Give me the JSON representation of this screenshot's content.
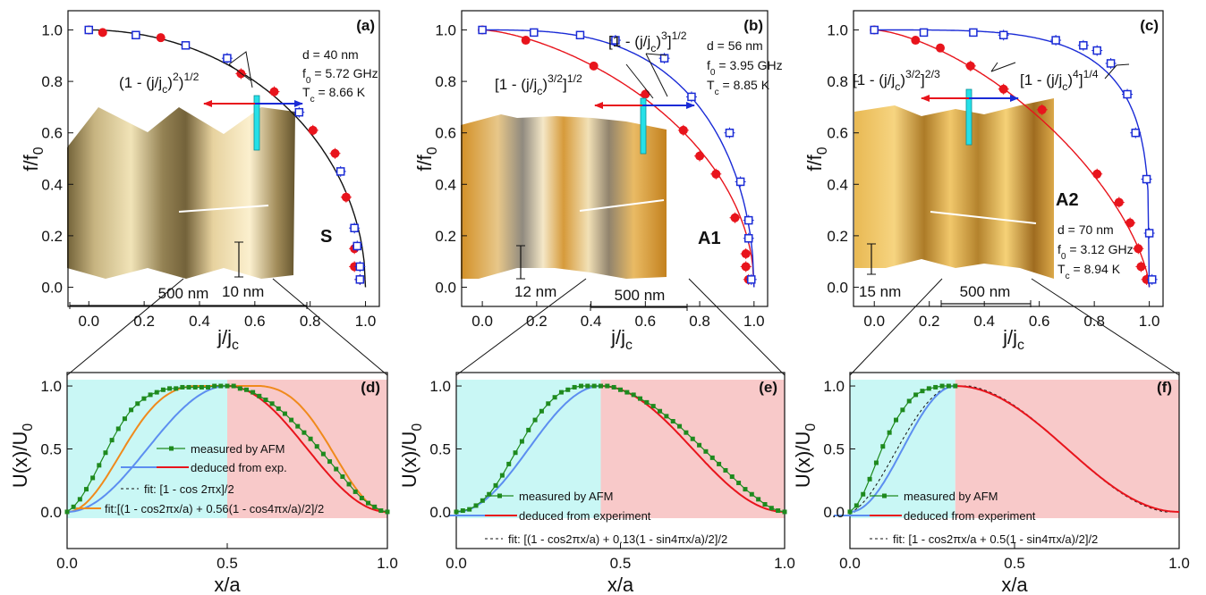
{
  "chart_data": [
    {
      "panel": "(a)",
      "type": "scatter",
      "xlabel": "j/j",
      "xlabel_sub": "c",
      "ylabel": "f/f",
      "ylabel_sub": "0",
      "xlim": [
        -0.03,
        1.05
      ],
      "ylim": [
        -0.04,
        1.04
      ],
      "xticks": [
        "0.0",
        "0.2",
        "0.4",
        "0.6",
        "0.8",
        "1.0"
      ],
      "yticks": [
        "0.0",
        "0.2",
        "0.4",
        "0.6",
        "0.8",
        "1.0"
      ],
      "series": [
        {
          "marker": "filled-circle",
          "color": "#e8141c",
          "x": [
            0.0,
            0.05,
            0.26,
            0.55,
            0.67,
            0.81,
            0.89,
            0.93,
            0.96,
            0.96,
            0.98
          ],
          "y": [
            1.0,
            0.99,
            0.97,
            0.83,
            0.76,
            0.61,
            0.52,
            0.35,
            0.15,
            0.08,
            0.03
          ]
        },
        {
          "marker": "open-square",
          "color": "#1a2bd6",
          "x": [
            0.0,
            0.17,
            0.35,
            0.5,
            0.76,
            0.91,
            0.96,
            0.97,
            0.98,
            0.98
          ],
          "y": [
            1.0,
            0.98,
            0.94,
            0.89,
            0.68,
            0.45,
            0.23,
            0.16,
            0.08,
            0.03
          ]
        }
      ],
      "fit_curves": [
        {
          "label": "(1 - (j/jc)^2)^1/2",
          "color": "#111111"
        }
      ],
      "annotations": [
        "(1 - (j/j",
        "c",
        ")",
        "2",
        ")",
        "1/2",
        "d = 40 nm",
        "f",
        "0",
        " = 5.72 GHz",
        "T",
        "c",
        " = 8.66 K"
      ],
      "inset": {
        "sample": "S",
        "scale_x": "500 nm",
        "scale_z": "10 nm"
      }
    },
    {
      "panel": "(b)",
      "type": "scatter",
      "xlabel": "j/j",
      "xlabel_sub": "c",
      "ylabel": "f/f",
      "ylabel_sub": "0",
      "xlim": [
        -0.03,
        1.05
      ],
      "ylim": [
        -0.04,
        1.04
      ],
      "xticks": [
        "0.0",
        "0.2",
        "0.4",
        "0.6",
        "0.8",
        "1.0"
      ],
      "yticks": [
        "0.0",
        "0.2",
        "0.4",
        "0.6",
        "0.8",
        "1.0"
      ],
      "series": [
        {
          "marker": "filled-circle",
          "color": "#e8141c",
          "x": [
            0.0,
            0.16,
            0.41,
            0.6,
            0.74,
            0.8,
            0.86,
            0.93,
            0.97,
            0.97,
            0.98
          ],
          "y": [
            1.0,
            0.96,
            0.86,
            0.75,
            0.61,
            0.51,
            0.44,
            0.27,
            0.13,
            0.08,
            0.03
          ]
        },
        {
          "marker": "open-square",
          "color": "#1a2bd6",
          "x": [
            0.0,
            0.19,
            0.36,
            0.49,
            0.67,
            0.77,
            0.91,
            0.95,
            0.98,
            0.98,
            0.99
          ],
          "y": [
            1.0,
            0.99,
            0.98,
            0.96,
            0.89,
            0.74,
            0.6,
            0.41,
            0.26,
            0.19,
            0.03
          ]
        }
      ],
      "fit_curves": [
        {
          "label": "[1 - (j/jc)^3/2]^1/2",
          "color": "#e8141c"
        },
        {
          "label": "[1 - (j/jc)^3]^1/2",
          "color": "#1a2bd6"
        }
      ],
      "annotations": [
        "[1 - (j/j",
        "c",
        ")",
        "3",
        "]",
        "1/2",
        "[1 - (j/j",
        "c",
        ")",
        "3/2",
        "]",
        "1/2",
        "d = 56 nm",
        "f",
        "0",
        " = 3.95 GHz",
        "T",
        "c",
        " = 8.85 K"
      ],
      "inset": {
        "sample": "A1",
        "scale_x": "500 nm",
        "scale_z": "12 nm"
      }
    },
    {
      "panel": "(c)",
      "type": "scatter",
      "xlabel": "j/j",
      "xlabel_sub": "c",
      "ylabel": "f/f",
      "ylabel_sub": "0",
      "xlim": [
        -0.03,
        1.05
      ],
      "ylim": [
        -0.04,
        1.04
      ],
      "xticks": [
        "0.0",
        "0.2",
        "0.4",
        "0.6",
        "0.8",
        "1.0"
      ],
      "yticks": [
        "0.0",
        "0.2",
        "0.4",
        "0.6",
        "0.8",
        "1.0"
      ],
      "series": [
        {
          "marker": "filled-circle",
          "color": "#e8141c",
          "x": [
            0.0,
            0.15,
            0.24,
            0.35,
            0.47,
            0.61,
            0.81,
            0.89,
            0.93,
            0.96,
            0.97,
            0.99
          ],
          "y": [
            1.0,
            0.96,
            0.93,
            0.86,
            0.77,
            0.69,
            0.44,
            0.33,
            0.25,
            0.15,
            0.08,
            0.03
          ]
        },
        {
          "marker": "open-square",
          "color": "#1a2bd6",
          "x": [
            0.0,
            0.18,
            0.36,
            0.47,
            0.66,
            0.76,
            0.81,
            0.86,
            0.92,
            0.95,
            0.99,
            1.0,
            1.01
          ],
          "y": [
            1.0,
            0.99,
            0.99,
            0.98,
            0.96,
            0.94,
            0.92,
            0.87,
            0.75,
            0.6,
            0.42,
            0.21,
            0.03
          ]
        }
      ],
      "fit_curves": [
        {
          "label": "[1 - (j/jc)^3/2]^2/3",
          "color": "#e8141c"
        },
        {
          "label": "[1 - (j/jc)^4]^1/4",
          "color": "#1a2bd6"
        }
      ],
      "annotations": [
        "[1 - (j/j",
        "c",
        ")",
        "3/2",
        "]",
        "2/3",
        "[1 - (j/j",
        "c",
        ")",
        "4",
        "]",
        "1/4",
        "d = 70 nm",
        "f",
        "0",
        " = 3.12 GHz",
        "T",
        "c",
        " = 8.94 K"
      ],
      "inset": {
        "sample": "A2",
        "scale_x": "500 nm",
        "scale_z": "15 nm"
      }
    },
    {
      "panel": "(d)",
      "type": "line",
      "xlabel": "x/a",
      "ylabel": "U(x)/U",
      "ylabel_sub": "0",
      "xlim": [
        0,
        1
      ],
      "ylim": [
        -0.05,
        1.05
      ],
      "xticks": [
        "0.0",
        "0.5",
        "1.0"
      ],
      "yticks": [
        "0.0",
        "0.5",
        "1.0"
      ],
      "split": 0.5,
      "series": [
        {
          "name": "measured by AFM",
          "color": "#1e8a1e",
          "x": [
            0.0,
            0.02,
            0.04,
            0.06,
            0.08,
            0.1,
            0.12,
            0.14,
            0.16,
            0.18,
            0.2,
            0.22,
            0.24,
            0.26,
            0.28,
            0.3,
            0.32,
            0.34,
            0.36,
            0.38,
            0.4,
            0.42,
            0.44,
            0.46,
            0.48,
            0.5,
            0.52,
            0.54,
            0.56,
            0.58,
            0.6,
            0.62,
            0.64,
            0.66,
            0.68,
            0.7,
            0.72,
            0.74,
            0.76,
            0.78,
            0.8,
            0.82,
            0.84,
            0.86,
            0.88,
            0.9,
            0.92,
            0.94,
            0.96,
            0.98,
            1.0
          ],
          "y": [
            0.0,
            0.04,
            0.1,
            0.18,
            0.27,
            0.37,
            0.47,
            0.57,
            0.66,
            0.74,
            0.81,
            0.86,
            0.9,
            0.93,
            0.95,
            0.97,
            0.98,
            0.98,
            0.99,
            0.99,
            0.99,
            0.99,
            0.99,
            1.0,
            1.0,
            1.0,
            1.0,
            0.98,
            0.97,
            0.95,
            0.92,
            0.89,
            0.86,
            0.82,
            0.78,
            0.73,
            0.68,
            0.63,
            0.58,
            0.52,
            0.46,
            0.4,
            0.34,
            0.28,
            0.22,
            0.16,
            0.11,
            0.07,
            0.04,
            0.01,
            0.0
          ]
        },
        {
          "name": "deduced from exp.",
          "color": "#e8141c",
          "segment": "split-blue-red"
        }
      ],
      "fits": [
        "fit: [1 - cos 2πx]/2",
        "fit:[(1 - cos2πx/a) + 0.56(1 - cos4πx/a)/2]/2"
      ],
      "fit_colors": [
        "#111111",
        "#f08a1c"
      ]
    },
    {
      "panel": "(e)",
      "type": "line",
      "xlabel": "x/a",
      "ylabel": "U(x)/U",
      "ylabel_sub": "0",
      "xlim": [
        0,
        1
      ],
      "ylim": [
        -0.05,
        1.05
      ],
      "xticks": [
        "0.0",
        "0.5",
        "1.0"
      ],
      "yticks": [
        "0.0",
        "0.5",
        "1.0"
      ],
      "split": 0.44,
      "series": [
        {
          "name": "measured by AFM",
          "color": "#1e8a1e",
          "x": [
            0.0,
            0.02,
            0.04,
            0.06,
            0.08,
            0.1,
            0.12,
            0.14,
            0.16,
            0.18,
            0.2,
            0.22,
            0.24,
            0.26,
            0.28,
            0.3,
            0.32,
            0.34,
            0.36,
            0.38,
            0.4,
            0.42,
            0.44,
            0.46,
            0.48,
            0.5,
            0.52,
            0.54,
            0.56,
            0.58,
            0.6,
            0.62,
            0.64,
            0.66,
            0.68,
            0.7,
            0.72,
            0.74,
            0.76,
            0.78,
            0.8,
            0.82,
            0.84,
            0.86,
            0.88,
            0.9,
            0.92,
            0.94,
            0.96,
            0.98,
            1.0
          ],
          "y": [
            0.0,
            0.01,
            0.02,
            0.05,
            0.09,
            0.14,
            0.21,
            0.29,
            0.38,
            0.47,
            0.56,
            0.65,
            0.73,
            0.8,
            0.86,
            0.91,
            0.95,
            0.97,
            0.99,
            1.0,
            1.0,
            1.0,
            1.0,
            1.0,
            0.99,
            0.97,
            0.95,
            0.93,
            0.9,
            0.87,
            0.84,
            0.8,
            0.76,
            0.72,
            0.68,
            0.63,
            0.58,
            0.53,
            0.48,
            0.43,
            0.38,
            0.33,
            0.28,
            0.23,
            0.18,
            0.14,
            0.1,
            0.06,
            0.03,
            0.01,
            0.0
          ]
        },
        {
          "name": "deduced from  experiment",
          "color": "#e8141c",
          "segment": "split-blue-red"
        }
      ],
      "fits": [
        "fit: [(1 - cos2πx/a) + 0.13(1 - sin4πx/a)/2]/2"
      ],
      "fit_colors": [
        "#111111"
      ]
    },
    {
      "panel": "(f)",
      "type": "line",
      "xlabel": "x/a",
      "ylabel": "U(x)/U",
      "ylabel_sub": "0",
      "xlim": [
        0,
        1
      ],
      "ylim": [
        -0.05,
        1.05
      ],
      "xticks": [
        "0.0",
        "0.5",
        "1.0"
      ],
      "yticks": [
        "0.0",
        "0.5",
        "1.0"
      ],
      "split": 0.32,
      "series": [
        {
          "name": "measured by AFM",
          "color": "#1e8a1e",
          "x": [
            0.0,
            0.02,
            0.04,
            0.06,
            0.08,
            0.1,
            0.12,
            0.14,
            0.16,
            0.18,
            0.2,
            0.22,
            0.24,
            0.26,
            0.28,
            0.3,
            0.32
          ],
          "y": [
            0.0,
            0.05,
            0.14,
            0.26,
            0.39,
            0.52,
            0.63,
            0.73,
            0.81,
            0.88,
            0.93,
            0.96,
            0.98,
            0.99,
            1.0,
            1.0,
            1.0
          ]
        },
        {
          "name": "deduced from experiment",
          "color": "#e8141c",
          "segment": "split-blue-red"
        }
      ],
      "fits": [
        "fit: [1 - cos2πx/a + 0.5(1 -  sin4πx/a)/2]/2"
      ],
      "fit_colors": [
        "#111111"
      ]
    }
  ]
}
